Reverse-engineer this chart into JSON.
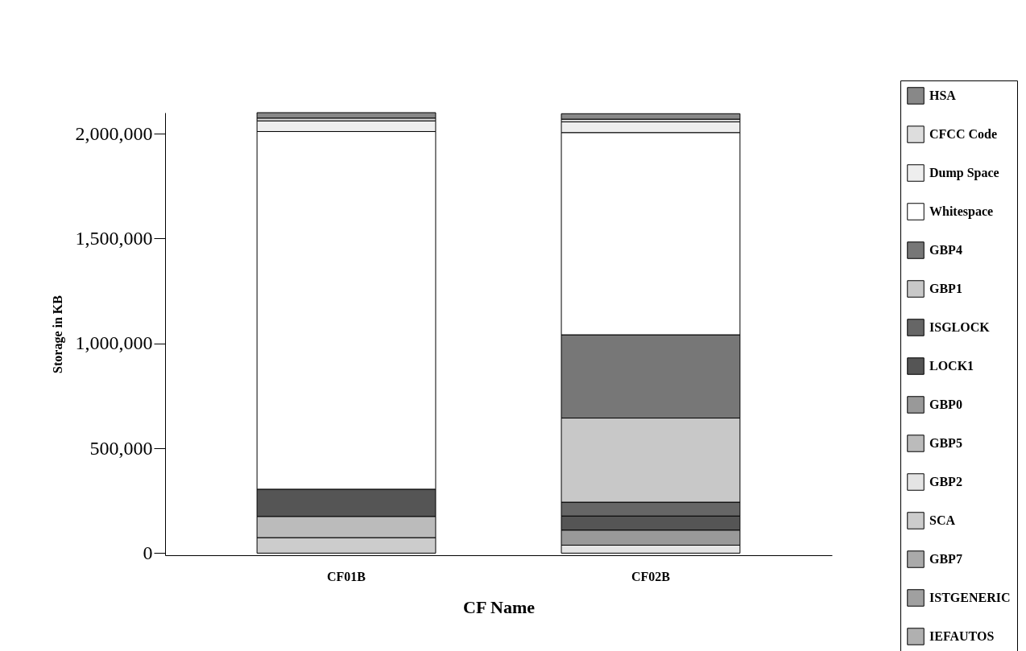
{
  "chart_data": {
    "type": "bar",
    "stacked": true,
    "xlabel": "CF Name",
    "ylabel": "Storage in KB",
    "categories": [
      "CF01B",
      "CF02B"
    ],
    "ylim": [
      -10000,
      2100000
    ],
    "yticks": [
      {
        "value": 0,
        "label": "0"
      },
      {
        "value": 500000,
        "label": "500,000"
      },
      {
        "value": 1000000,
        "label": "1,000,000"
      },
      {
        "value": 1500000,
        "label": "1,500,000"
      },
      {
        "value": 2000000,
        "label": "2,000,000"
      }
    ],
    "grid": false,
    "legend": "right",
    "series": [
      {
        "name": "IEFAUTOS",
        "color": "#b0b0b0",
        "values": [
          0,
          0
        ]
      },
      {
        "name": "ISTGENERIC",
        "color": "#a0a0a0",
        "values": [
          0,
          0
        ]
      },
      {
        "name": "GBP7",
        "color": "#aaaaaa",
        "values": [
          0,
          0
        ]
      },
      {
        "name": "SCA",
        "color": "#cccccc",
        "values": [
          74000,
          0
        ]
      },
      {
        "name": "GBP2",
        "color": "#e4e4e4",
        "values": [
          0,
          38000
        ]
      },
      {
        "name": "GBP5",
        "color": "#bbbbbb",
        "values": [
          101000,
          0
        ]
      },
      {
        "name": "GBP0",
        "color": "#999999",
        "values": [
          0,
          72000
        ]
      },
      {
        "name": "LOCK1",
        "color": "#555555",
        "values": [
          130000,
          67000
        ]
      },
      {
        "name": "ISGLOCK",
        "color": "#666666",
        "values": [
          0,
          66000
        ]
      },
      {
        "name": "GBP1",
        "color": "#c8c8c8",
        "values": [
          0,
          401000
        ]
      },
      {
        "name": "GBP4",
        "color": "#777777",
        "values": [
          0,
          397000
        ]
      },
      {
        "name": "Whitespace",
        "color": "#ffffff",
        "values": [
          1705000,
          964000
        ]
      },
      {
        "name": "Dump Space",
        "color": "#eeeeee",
        "values": [
          51000,
          51000
        ]
      },
      {
        "name": "CFCC Code",
        "color": "#dddddd",
        "values": [
          13000,
          13000
        ]
      },
      {
        "name": "HSA",
        "color": "#888888",
        "values": [
          26000,
          26000
        ]
      }
    ]
  }
}
